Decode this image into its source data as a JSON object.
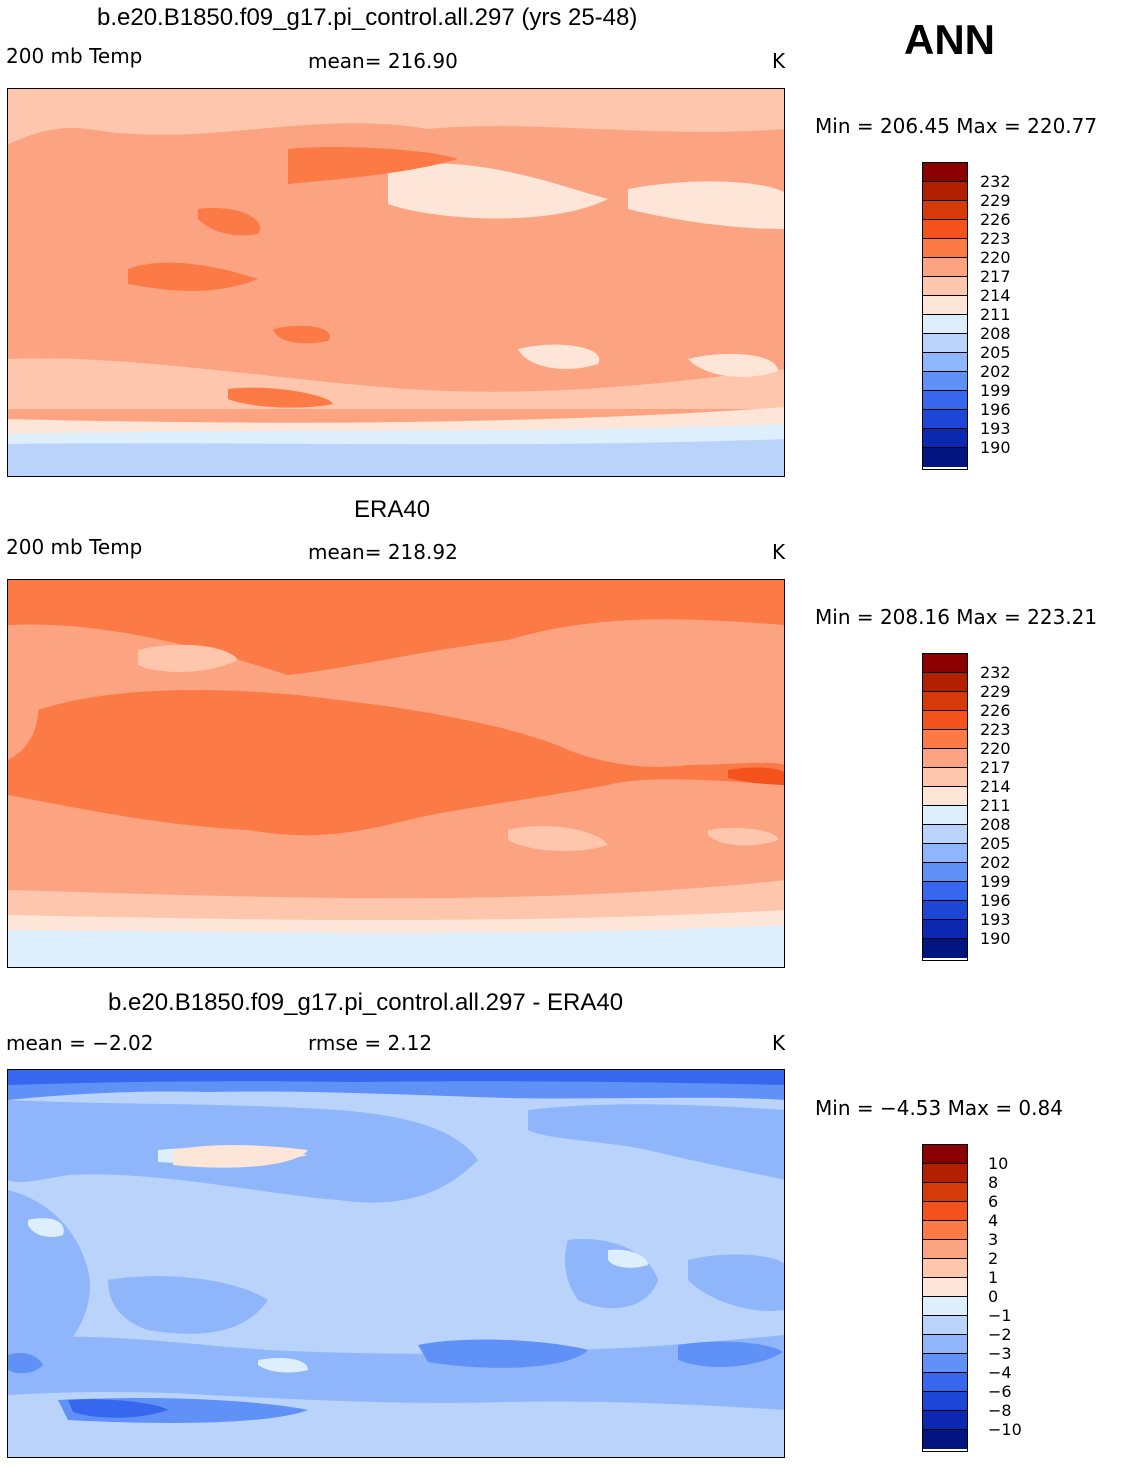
{
  "season": "ANN",
  "units": "K",
  "panels": [
    {
      "title": "b.e20.B1850.f09_g17.pi_control.all.297 (yrs 25-48)",
      "left_label": "200 mb Temp",
      "center_label": "mean=  216.90",
      "minmax": "Min = 206.45 Max = 220.77",
      "colorbar_labels": [
        "232",
        "229",
        "226",
        "223",
        "220",
        "217",
        "214",
        "211",
        "208",
        "205",
        "202",
        "199",
        "196",
        "193",
        "190"
      ]
    },
    {
      "title": "ERA40",
      "left_label": "200 mb Temp",
      "center_label": "mean=  218.92",
      "minmax": "Min = 208.16 Max = 223.21",
      "colorbar_labels": [
        "232",
        "229",
        "226",
        "223",
        "220",
        "217",
        "214",
        "211",
        "208",
        "205",
        "202",
        "199",
        "196",
        "193",
        "190"
      ]
    },
    {
      "title": "b.e20.B1850.f09_g17.pi_control.all.297 - ERA40",
      "left_label": "mean =   −2.02",
      "center_label": "rmse =     2.12",
      "minmax": "Min =   −4.53 Max =    0.84",
      "colorbar_labels": [
        "10",
        "8",
        "6",
        "4",
        "3",
        "2",
        "1",
        "0",
        "−1",
        "−2",
        "−3",
        "−4",
        "−6",
        "−8",
        "−10"
      ]
    }
  ],
  "colors": {
    "temp_scale": [
      "#8b0000",
      "#b22000",
      "#d63a0a",
      "#f4521c",
      "#fb7a45",
      "#fca482",
      "#fdc6ad",
      "#fde6d8",
      "#ddeefc",
      "#b9d3fb",
      "#8fb5fa",
      "#5f91f6",
      "#3767ee",
      "#1d46d6",
      "#0d28b0",
      "#001580"
    ],
    "diff_scale": [
      "#8b0000",
      "#b22000",
      "#d63a0a",
      "#f4521c",
      "#fb7a45",
      "#fca482",
      "#fdc6ad",
      "#fde6d8",
      "#ddeefc",
      "#b9d3fb",
      "#8fb5fa",
      "#5f91f6",
      "#3767ee",
      "#1d46d6",
      "#0d28b0",
      "#001580"
    ]
  }
}
